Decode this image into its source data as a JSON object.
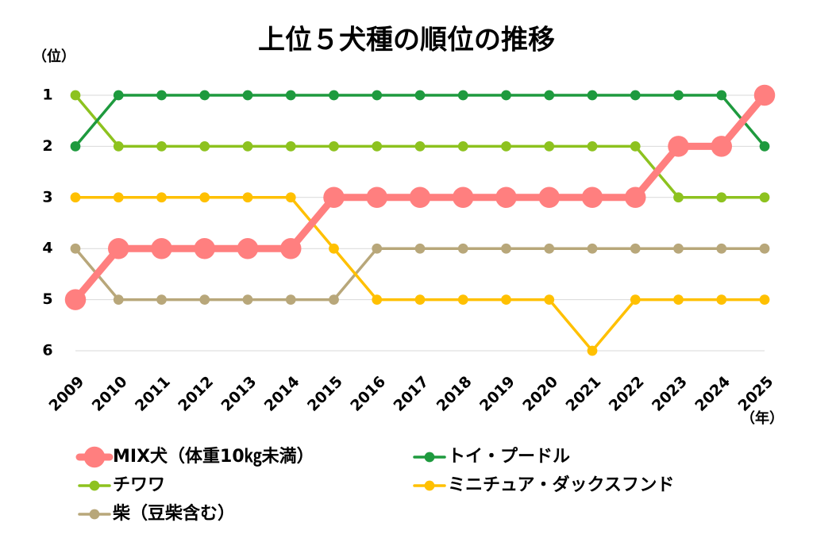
{
  "chart_data": {
    "type": "line",
    "title": "上位５犬種の順位の推移",
    "y_label": "（位）",
    "x_label": "（年）",
    "categories": [
      "2009",
      "2010",
      "2011",
      "2012",
      "2013",
      "2014",
      "2015",
      "2016",
      "2017",
      "2018",
      "2019",
      "2020",
      "2021",
      "2022",
      "2023",
      "2024",
      "2025"
    ],
    "ylim": [
      1,
      6
    ],
    "yticks": [
      1,
      2,
      3,
      4,
      5,
      6
    ],
    "y_inverted": true,
    "grid": true,
    "series": [
      {
        "name": "MIX犬（体重10㎏未満）",
        "color": "#ff7f7f",
        "line_width": 9,
        "values": [
          5,
          4,
          4,
          4,
          4,
          4,
          3,
          3,
          3,
          3,
          3,
          3,
          3,
          3,
          2,
          2,
          1
        ]
      },
      {
        "name": "トイ・プードル",
        "color": "#1e9a3e",
        "line_width": 3.5,
        "values": [
          2,
          1,
          1,
          1,
          1,
          1,
          1,
          1,
          1,
          1,
          1,
          1,
          1,
          1,
          1,
          1,
          2
        ]
      },
      {
        "name": "チワワ",
        "color": "#8dc21f",
        "line_width": 3.5,
        "values": [
          1,
          2,
          2,
          2,
          2,
          2,
          2,
          2,
          2,
          2,
          2,
          2,
          2,
          2,
          3,
          3,
          3
        ]
      },
      {
        "name": "ミニチュア・ダックスフンド",
        "color": "#ffc000",
        "line_width": 3.5,
        "values": [
          3,
          3,
          3,
          3,
          3,
          3,
          4,
          5,
          5,
          5,
          5,
          5,
          6,
          5,
          5,
          5,
          5
        ]
      },
      {
        "name": "柴（豆柴含む）",
        "color": "#b8a77a",
        "line_width": 3.5,
        "values": [
          4,
          5,
          5,
          5,
          5,
          5,
          5,
          4,
          4,
          4,
          4,
          4,
          4,
          4,
          4,
          4,
          4
        ]
      }
    ]
  }
}
